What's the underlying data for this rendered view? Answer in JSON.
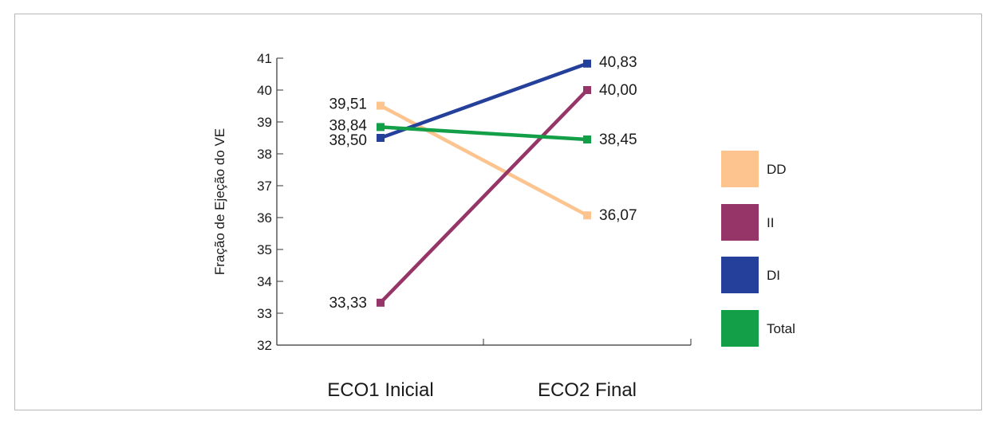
{
  "chart_data": {
    "type": "line",
    "title": "",
    "xlabel": "",
    "ylabel": "Fração de Ejeção do VE",
    "categories": [
      "ECO1 Inicial",
      "ECO2 Final"
    ],
    "ylim": [
      32,
      41
    ],
    "yticks": [
      32,
      33,
      34,
      35,
      36,
      37,
      38,
      39,
      40,
      41
    ],
    "series": [
      {
        "name": "DD",
        "values": [
          39.51,
          36.07
        ],
        "labels": [
          "39,51",
          "36,07"
        ],
        "color": "#fdc48f"
      },
      {
        "name": "II",
        "values": [
          33.33,
          40.0
        ],
        "labels": [
          "33,33",
          "40,00"
        ],
        "color": "#963567"
      },
      {
        "name": "DI",
        "values": [
          38.5,
          40.83
        ],
        "labels": [
          "38,50",
          "40,83"
        ],
        "color": "#25409b"
      },
      {
        "name": "Total",
        "values": [
          38.84,
          38.45
        ],
        "labels": [
          "38,84",
          "38,45"
        ],
        "color": "#129f48"
      }
    ],
    "grid": false,
    "legend_position": "right"
  }
}
